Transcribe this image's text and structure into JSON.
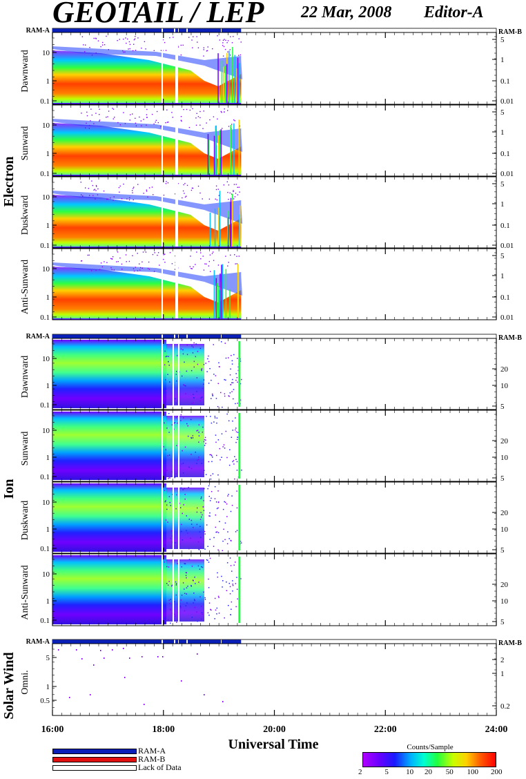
{
  "header": {
    "title": "GEOTAIL / LEP",
    "date": "22 Mar, 2008",
    "editor": "Editor-A"
  },
  "legend": {
    "ram_a": "RAM-A",
    "ram_b": "RAM-B",
    "lack": "Lack of Data"
  },
  "colorbar": {
    "title": "Counts/Sample",
    "ticks": [
      "2",
      "5",
      "10",
      "20",
      "50",
      "100",
      "200"
    ]
  },
  "colors": {
    "ram_a": "#0a1fb8",
    "ram_b": "#e01010",
    "lack": "#ffffff"
  },
  "chart_data": {
    "type": "heatmap",
    "xlabel": "Universal Time",
    "x_ticks": [
      "16:00",
      "18:00",
      "20:00",
      "22:00",
      "24:00"
    ],
    "x_range_hours": [
      16,
      24
    ],
    "data_end_hour": 19.4,
    "groups": [
      {
        "name": "Electron",
        "status_left": "RAM-A",
        "status_right": "RAM-B",
        "left_ticks": [
          "10",
          "1",
          "0.1"
        ],
        "right_ticks": [
          "5",
          "1",
          "0.1",
          "0.01"
        ],
        "panels": [
          "Dawnward",
          "Sunward",
          "Duskward",
          "Anti-Sunward"
        ]
      },
      {
        "name": "Ion",
        "status_left": "RAM-A",
        "status_right": "RAM-B",
        "left_ticks": [
          "10",
          "1",
          "0.1"
        ],
        "right_ticks": [
          "20",
          "10",
          "5"
        ],
        "panels": [
          "Dawnward",
          "Sunward",
          "Duskward",
          "Anti-Sunward"
        ]
      },
      {
        "name": "Solar Wind",
        "status_left": "RAM-A",
        "status_right": "RAM-B",
        "left_ticks": [
          "5",
          "1",
          "0.5"
        ],
        "right_ticks": [
          "2",
          "1",
          "0.2"
        ],
        "panels": [
          "Omni."
        ]
      }
    ]
  }
}
